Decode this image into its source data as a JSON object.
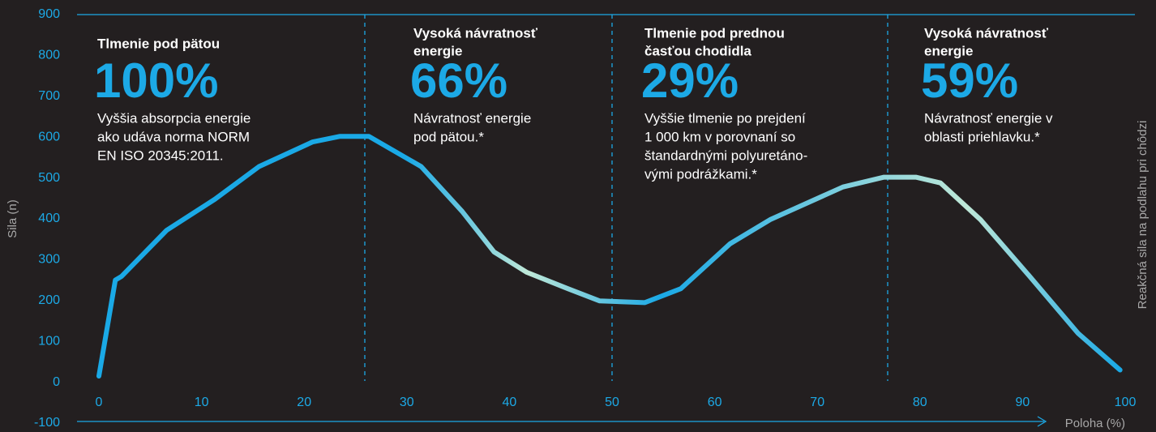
{
  "chart_data": {
    "type": "line",
    "y_label": "Sila (n)",
    "x_label": "Poloha (%)",
    "y2_label": "Reakčná sila na podlahu pri chôdzi",
    "xlim": [
      0,
      100
    ],
    "xticks": [
      0,
      10,
      20,
      30,
      40,
      50,
      60,
      70,
      80,
      90,
      100
    ],
    "ylim": [
      -100,
      900
    ],
    "yticks": [
      -100,
      0,
      100,
      200,
      300,
      400,
      500,
      600,
      700,
      800,
      900
    ],
    "series": [
      {
        "color": "#1aa9e6",
        "x": [
          0,
          1.6,
          2.2,
          6.6,
          11.3,
          15.6,
          20.8,
          23.5,
          26.3,
          31.4,
          35.4,
          38.5,
          41.7,
          45.7,
          48.8,
          53.2,
          56.7,
          61.5,
          65.4,
          72.5,
          76.5,
          79.6,
          82,
          85.9,
          90.7,
          95.4,
          99.5
        ],
        "values": [
          15,
          250,
          259,
          372,
          448,
          528,
          588,
          602,
          602,
          528,
          418,
          319,
          269,
          229,
          199,
          195,
          229,
          339,
          398,
          478,
          502,
          502,
          488,
          398,
          259,
          120,
          30
        ]
      }
    ],
    "annotations": [
      {
        "heading": [
          "Tlmenie pod pätou"
        ],
        "number": "100%",
        "text": [
          "Vyššia absorpcia energie",
          "ako udáva norma NORM",
          "EN ISO 20345:2011."
        ]
      },
      {
        "heading": [
          "Vysoká návratnosť",
          "energie"
        ],
        "number": "66%",
        "text": [
          "Návratnosť energie",
          "pod pätou.*"
        ]
      },
      {
        "heading": [
          "Tlmenie pod prednou",
          "časťou chodidla"
        ],
        "number": "29%",
        "text": [
          "Vyššie tlmenie  po prejdení",
          "1 000 km v porovnaní so",
          "štandardnými polyuretáno-",
          "vými podrážkami.*"
        ]
      },
      {
        "heading": [
          "Vysoká návratnosť",
          "energie"
        ],
        "number": "59%",
        "text": [
          "Návratnosť energie v",
          "oblasti priehlavku.*"
        ]
      }
    ]
  }
}
